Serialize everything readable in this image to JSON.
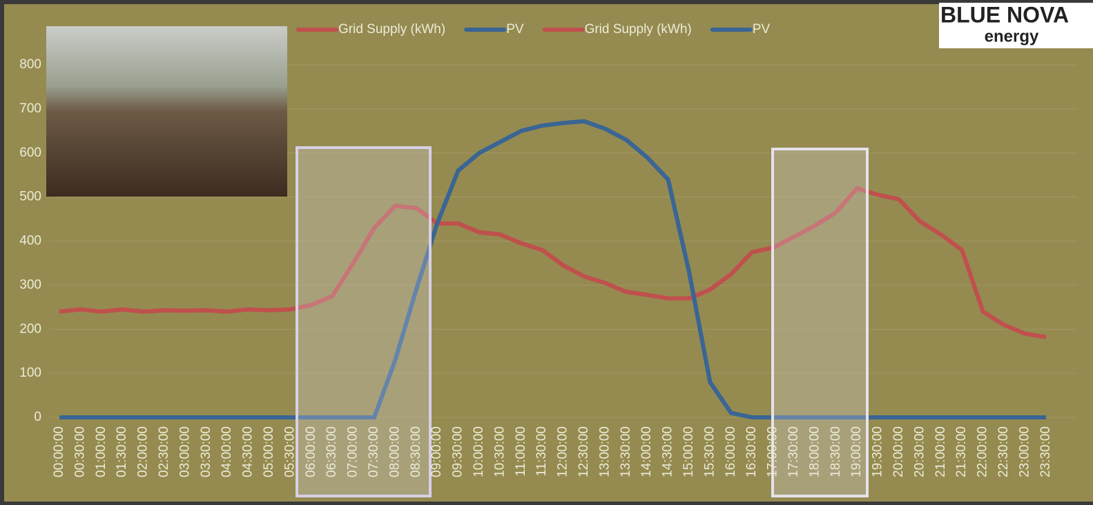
{
  "chart_data": {
    "type": "line",
    "categories": [
      "00:00:00",
      "00:30:00",
      "01:00:00",
      "01:30:00",
      "02:00:00",
      "02:30:00",
      "03:00:00",
      "03:30:00",
      "04:00:00",
      "04:30:00",
      "05:00:00",
      "05:30:00",
      "06:00:00",
      "06:30:00",
      "07:00:00",
      "07:30:00",
      "08:00:00",
      "08:30:00",
      "09:00:00",
      "09:30:00",
      "10:00:00",
      "10:30:00",
      "11:00:00",
      "11:30:00",
      "12:00:00",
      "12:30:00",
      "13:00:00",
      "13:30:00",
      "14:00:00",
      "14:30:00",
      "15:00:00",
      "15:30:00",
      "16:00:00",
      "16:30:00",
      "17:00:00",
      "17:30:00",
      "18:00:00",
      "18:30:00",
      "19:00:00",
      "19:30:00",
      "20:00:00",
      "20:30:00",
      "21:00:00",
      "21:30:00",
      "22:00:00",
      "22:30:00",
      "23:00:00",
      "23:30:00"
    ],
    "series": [
      {
        "name": "Grid Supply (kWh)",
        "color": "#c0504d",
        "values": [
          240,
          245,
          240,
          245,
          240,
          243,
          242,
          243,
          240,
          245,
          243,
          245,
          255,
          275,
          350,
          430,
          480,
          475,
          440,
          440,
          420,
          415,
          395,
          380,
          345,
          320,
          305,
          285,
          278,
          270,
          270,
          290,
          325,
          375,
          385,
          410,
          435,
          465,
          520,
          505,
          495,
          445,
          415,
          380,
          240,
          210,
          190,
          182
        ]
      },
      {
        "name": "PV",
        "color": "#3a6594",
        "values": [
          0,
          0,
          0,
          0,
          0,
          0,
          0,
          0,
          0,
          0,
          0,
          0,
          0,
          0,
          0,
          0,
          130,
          290,
          440,
          560,
          600,
          625,
          650,
          662,
          668,
          672,
          655,
          630,
          590,
          540,
          330,
          80,
          10,
          0,
          0,
          0,
          0,
          0,
          0,
          0,
          0,
          0,
          0,
          0,
          0,
          0,
          0,
          0
        ]
      },
      {
        "name": "Grid Supply (kWh)",
        "color": "#c0504d",
        "values": [
          240,
          245,
          240,
          245,
          240,
          243,
          242,
          243,
          240,
          245,
          243,
          245,
          255,
          275,
          350,
          430,
          480,
          475,
          440,
          440,
          420,
          415,
          395,
          380,
          345,
          320,
          305,
          285,
          278,
          270,
          270,
          290,
          325,
          375,
          385,
          410,
          435,
          465,
          520,
          505,
          495,
          445,
          415,
          380,
          240,
          210,
          190,
          182
        ]
      },
      {
        "name": "PV",
        "color": "#3a6594",
        "values": [
          0,
          0,
          0,
          0,
          0,
          0,
          0,
          0,
          0,
          0,
          0,
          0,
          0,
          0,
          0,
          0,
          130,
          290,
          440,
          560,
          600,
          625,
          650,
          662,
          668,
          672,
          655,
          630,
          590,
          540,
          330,
          80,
          10,
          0,
          0,
          0,
          0,
          0,
          0,
          0,
          0,
          0,
          0,
          0,
          0,
          0,
          0,
          0
        ]
      }
    ],
    "ylim": [
      0,
      800
    ],
    "yticks": [
      0,
      100,
      200,
      300,
      400,
      500,
      600,
      700,
      800
    ],
    "grid": true
  },
  "logo": {
    "name": "BLUE NOVA",
    "tagline": "energy"
  }
}
